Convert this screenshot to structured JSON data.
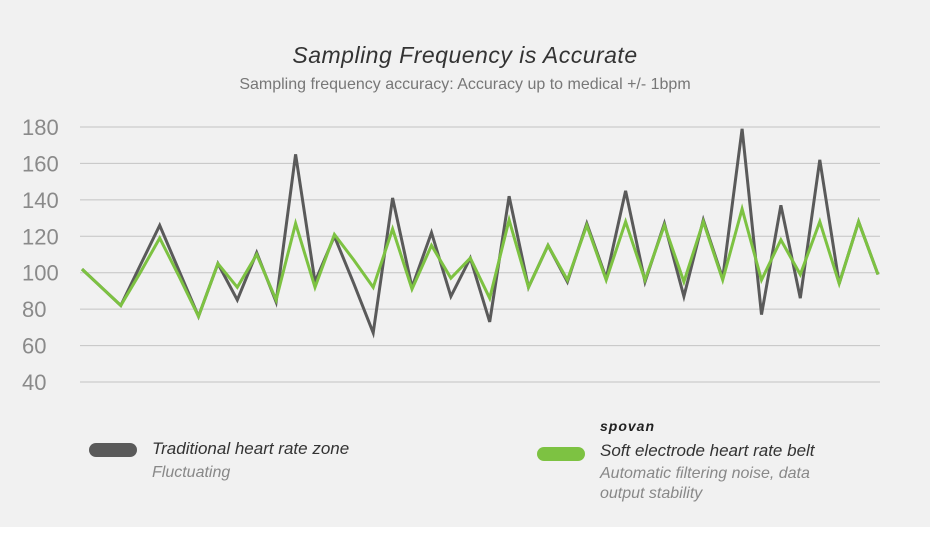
{
  "chart_data": {
    "type": "line",
    "title": "Sampling Frequency is Accurate",
    "subtitle": "Sampling frequency accuracy: Accuracy up to medical +/- 1bpm",
    "ylim": [
      40,
      180
    ],
    "yticks": [
      180,
      160,
      140,
      120,
      100,
      80,
      60,
      40
    ],
    "grid": true,
    "legend_position": "bottom",
    "x": [
      1,
      2,
      3,
      4,
      5,
      6,
      7,
      8,
      9,
      10,
      11,
      12,
      13,
      14,
      15,
      16,
      17,
      18,
      19,
      20,
      21,
      22,
      23,
      24,
      25,
      26,
      27,
      28,
      29,
      30,
      31,
      32,
      33,
      34,
      35,
      36,
      37,
      38,
      39,
      40,
      41,
      42,
      43,
      44,
      45,
      46,
      47,
      48
    ],
    "series": [
      {
        "name": "Traditional heart rate zone",
        "color": "#5a5a5a",
        "values": [
          102,
          92,
          82,
          104,
          126,
          101,
          76,
          105,
          85,
          111,
          84,
          165,
          95,
          120,
          94,
          67,
          141,
          92,
          122,
          87,
          108,
          73,
          142,
          92,
          115,
          95,
          127,
          97,
          145,
          95,
          127,
          87,
          129,
          97,
          179,
          77,
          137,
          86,
          162,
          94,
          128,
          99,
          null,
          null,
          null,
          null,
          null,
          null
        ]
      },
      {
        "name": "Soft electrode heart rate belt",
        "color": "#7dc242",
        "values": [
          102,
          92,
          82,
          100,
          119,
          98,
          76,
          105,
          92,
          110,
          85,
          127,
          92,
          121,
          107,
          92,
          124,
          91,
          115,
          97,
          108,
          86,
          129,
          92,
          115,
          96,
          126,
          96,
          128,
          96,
          126,
          95,
          128,
          96,
          135,
          96,
          118,
          99,
          128,
          94,
          128,
          99,
          null,
          null,
          null,
          null,
          null,
          null
        ]
      }
    ],
    "legend": [
      {
        "label": "Traditional heart rate zone",
        "description": "Fluctuating",
        "color": "#5a5a5a"
      },
      {
        "label": "Soft electrode heart rate belt",
        "description_line1": "Automatic filtering noise, data",
        "description_line2": "output stability",
        "color": "#7dc242"
      }
    ],
    "brand": "spovan"
  }
}
